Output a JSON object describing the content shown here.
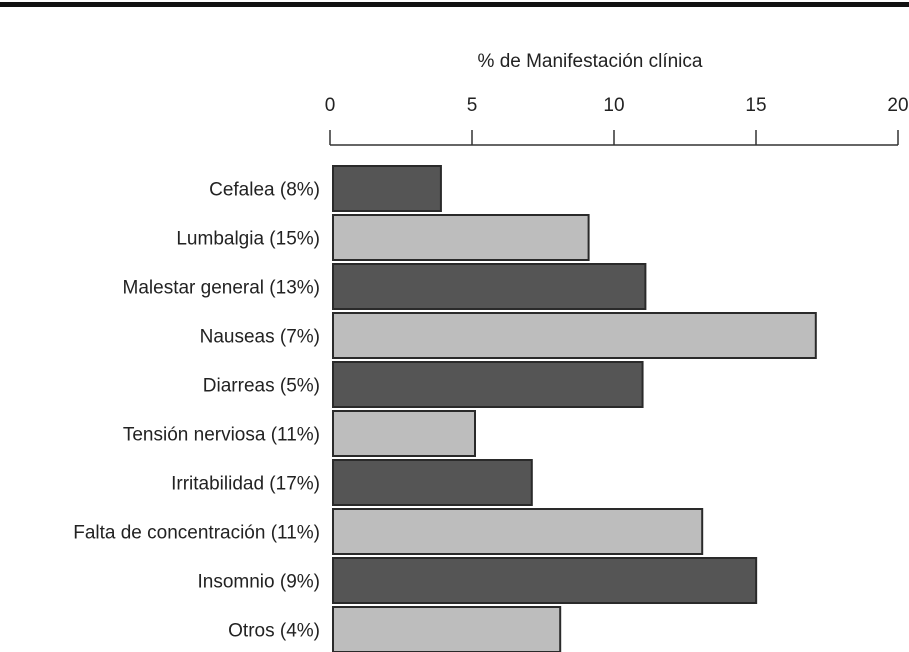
{
  "chart_data": {
    "type": "hbar",
    "title": "% de Manifestación clínica",
    "categories": [
      "Cefalea (8%)",
      "Lumbalgia (15%)",
      "Malestar general (13%)",
      "Nauseas (7%)",
      "Diarreas (5%)",
      "Tensión nerviosa (11%)",
      "Irritabilidad (17%)",
      "Falta de concentración (11%)",
      "Insomnio (9%)",
      "Otros (4%)"
    ],
    "values": [
      3.8,
      9,
      11,
      17,
      10.9,
      5,
      7,
      13,
      14.9,
      8
    ],
    "colors": [
      "#555555",
      "#bdbdbd",
      "#555555",
      "#bdbdbd",
      "#555555",
      "#bdbdbd",
      "#555555",
      "#bdbdbd",
      "#555555",
      "#bdbdbd"
    ],
    "xlim": [
      0,
      20
    ],
    "xticks": [
      0,
      5,
      10,
      15,
      20
    ],
    "axis_position": "top"
  }
}
